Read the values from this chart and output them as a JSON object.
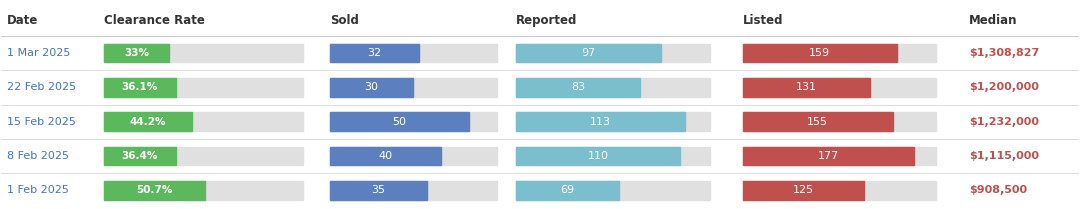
{
  "headers": [
    "Date",
    "Clearance Rate",
    "Sold",
    "Reported",
    "Listed",
    "Median"
  ],
  "rows": [
    {
      "date": "1 Mar 2025",
      "clearance_rate": 33.0,
      "clearance_label": "33%",
      "sold": 32,
      "reported": 97,
      "listed": 159,
      "median": "$1,308,827"
    },
    {
      "date": "22 Feb 2025",
      "clearance_rate": 36.1,
      "clearance_label": "36.1%",
      "sold": 30,
      "reported": 83,
      "listed": 131,
      "median": "$1,200,000"
    },
    {
      "date": "15 Feb 2025",
      "clearance_rate": 44.2,
      "clearance_label": "44.2%",
      "sold": 50,
      "reported": 113,
      "listed": 155,
      "median": "$1,232,000"
    },
    {
      "date": "8 Feb 2025",
      "clearance_rate": 36.4,
      "clearance_label": "36.4%",
      "sold": 40,
      "reported": 110,
      "listed": 177,
      "median": "$1,115,000"
    },
    {
      "date": "1 Feb 2025",
      "clearance_rate": 50.7,
      "clearance_label": "50.7%",
      "sold": 35,
      "reported": 69,
      "listed": 125,
      "median": "$908,500"
    }
  ],
  "color_bg": "#ffffff",
  "color_clearance_bar": "#5cb85c",
  "color_sold_bar": "#5b7fbf",
  "color_reported_bar": "#7bbfcf",
  "color_listed_bar": "#c0504d",
  "color_bg_bar": "#e0e0e0",
  "color_header_text": "#333333",
  "color_date_text": "#4472c4",
  "color_median_text": "#c0504d",
  "color_separator": "#cccccc",
  "max_sold": 60,
  "max_reported": 130,
  "max_listed": 200,
  "col_date": 0.005,
  "col_clearance": 0.095,
  "col_sold": 0.305,
  "col_reported": 0.478,
  "col_listed": 0.688,
  "col_median": 0.898,
  "bw_clearance": 0.185,
  "bw_sold": 0.155,
  "bw_reported": 0.18,
  "bw_listed": 0.18,
  "header_fontsize": 8.5,
  "data_fontsize": 8.0,
  "bar_height": 0.54
}
